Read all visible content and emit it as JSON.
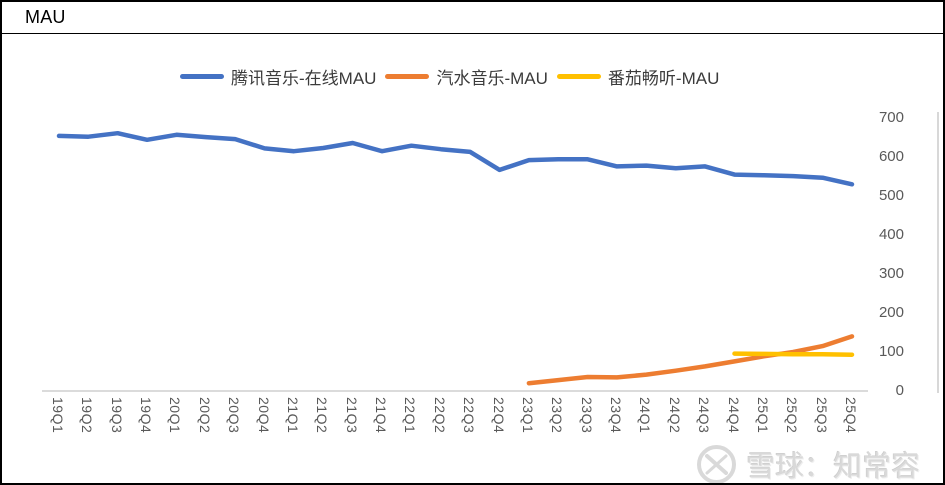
{
  "window": {
    "title": "MAU"
  },
  "watermark": {
    "text": "雪球：知常容",
    "logo": "xueqiu-logo",
    "color": "#d9d9d9"
  },
  "axis_colors": {
    "axis_line": "#cfcfcf",
    "tick_text": "#595959"
  },
  "chart_data": {
    "type": "line",
    "title": "MAU",
    "categories": [
      "19Q1",
      "19Q2",
      "19Q3",
      "19Q4",
      "20Q1",
      "20Q2",
      "20Q3",
      "20Q4",
      "21Q1",
      "21Q2",
      "21Q3",
      "21Q4",
      "22Q1",
      "22Q2",
      "22Q3",
      "22Q4",
      "23Q1",
      "23Q2",
      "23Q3",
      "23Q4",
      "24Q1",
      "24Q2",
      "24Q3",
      "24Q4",
      "25Q1",
      "25Q2",
      "25Q3",
      "25Q4"
    ],
    "series": [
      {
        "name": "腾讯音乐-在线MAU",
        "color": "#4472C4",
        "start_index": 0,
        "values": [
          654,
          652,
          661,
          644,
          657,
          651,
          646,
          622,
          615,
          623,
          636,
          615,
          629,
          620,
          613,
          567,
          592,
          594,
          594,
          576,
          578,
          571,
          576,
          555,
          553,
          551,
          547,
          530
        ]
      },
      {
        "name": "汽水音乐-MAU",
        "color": "#ED7D31",
        "start_index": 16,
        "values": [
          20,
          28,
          36,
          35,
          42,
          52,
          63,
          76,
          89,
          100,
          115,
          140
        ]
      },
      {
        "name": "番茄畅听-MAU",
        "color": "#FFC000",
        "start_index": 23,
        "values": [
          96,
          95,
          94,
          94,
          93
        ]
      }
    ],
    "xlabel": "",
    "ylabel": "",
    "ylim": [
      0,
      700
    ],
    "yticks": [
      0,
      100,
      200,
      300,
      400,
      500,
      600,
      700
    ],
    "legend_position": "top",
    "grid": false,
    "y_axis_side": "right"
  }
}
